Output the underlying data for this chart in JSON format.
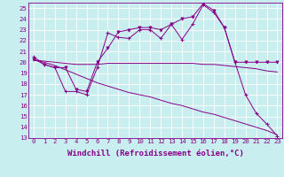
{
  "background_color": "#c8eef0",
  "grid_color": "#ffffff",
  "line_color": "#880088",
  "xlabel": "Windchill (Refroidissement éolien,°C)",
  "xlabel_fontsize": 6.5,
  "xtick_fontsize": 5.2,
  "ytick_fontsize": 5.2,
  "xlim": [
    -0.5,
    23.5
  ],
  "ylim": [
    13,
    25.5
  ],
  "yticks": [
    13,
    14,
    15,
    16,
    17,
    18,
    19,
    20,
    21,
    22,
    23,
    24,
    25
  ],
  "xticks": [
    0,
    1,
    2,
    3,
    4,
    5,
    6,
    7,
    8,
    9,
    10,
    11,
    12,
    13,
    14,
    15,
    16,
    17,
    18,
    19,
    20,
    21,
    22,
    23
  ],
  "line1_x": [
    0,
    1,
    2,
    3,
    4,
    5,
    6,
    7,
    8,
    9,
    10,
    11,
    12,
    13,
    14,
    15,
    16,
    17,
    18,
    19,
    20,
    21,
    22,
    23
  ],
  "line1_y": [
    20.5,
    19.8,
    19.5,
    17.3,
    17.3,
    17.0,
    19.5,
    22.7,
    22.3,
    22.2,
    23.0,
    23.0,
    22.2,
    23.5,
    22.1,
    23.5,
    25.3,
    24.6,
    23.2,
    20.0,
    17.0,
    15.3,
    14.3,
    13.2
  ],
  "line2_x": [
    0,
    1,
    2,
    3,
    4,
    5,
    6,
    7,
    8,
    9,
    10,
    11,
    12,
    13,
    14,
    15,
    16,
    17,
    18,
    19,
    20,
    21,
    22,
    23
  ],
  "line2_y": [
    20.3,
    19.8,
    19.5,
    19.5,
    17.5,
    17.3,
    20.0,
    21.3,
    22.8,
    23.0,
    23.2,
    23.2,
    23.0,
    23.5,
    24.0,
    24.2,
    25.4,
    24.8,
    23.2,
    20.0,
    20.0,
    20.0,
    20.0,
    20.0
  ],
  "line3_x": [
    0,
    1,
    2,
    3,
    4,
    5,
    6,
    7,
    8,
    9,
    10,
    11,
    12,
    13,
    14,
    15,
    16,
    17,
    18,
    19,
    20,
    21,
    22,
    23
  ],
  "line3_y": [
    20.2,
    20.1,
    20.0,
    19.9,
    19.8,
    19.8,
    19.8,
    19.9,
    19.9,
    19.9,
    19.9,
    19.9,
    19.9,
    19.9,
    19.9,
    19.9,
    19.8,
    19.8,
    19.7,
    19.6,
    19.5,
    19.4,
    19.2,
    19.1
  ],
  "line4_x": [
    0,
    1,
    2,
    3,
    4,
    5,
    6,
    7,
    8,
    9,
    10,
    11,
    12,
    13,
    14,
    15,
    16,
    17,
    18,
    19,
    20,
    21,
    22,
    23
  ],
  "line4_y": [
    20.2,
    20.0,
    19.7,
    19.3,
    18.9,
    18.5,
    18.1,
    17.8,
    17.5,
    17.2,
    17.0,
    16.8,
    16.5,
    16.2,
    16.0,
    15.7,
    15.4,
    15.2,
    14.9,
    14.6,
    14.3,
    14.0,
    13.7,
    13.3
  ]
}
